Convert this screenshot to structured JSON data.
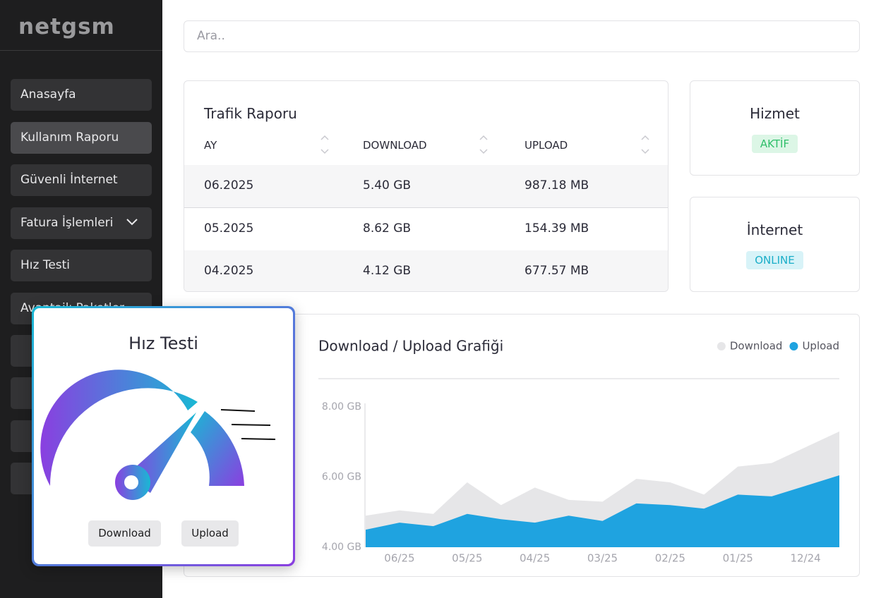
{
  "sidebar": {
    "logo": "netgsm",
    "menu": [
      "Anasayfa",
      "Kullanım Raporu",
      "Güvenli İnternet",
      "Fatura İşlemleri",
      "Hız Testi",
      "Avantajlı Paketler"
    ],
    "active": 1
  },
  "search": {
    "placeholder": "Ara.."
  },
  "traffic": {
    "title": "Trafik Raporu",
    "columns": [
      "AY",
      "DOWNLOAD",
      "UPLOAD"
    ],
    "rows": [
      [
        "06.2025",
        "5.40 GB",
        "987.18 MB"
      ],
      [
        "05.2025",
        "8.62 GB",
        "154.39 MB"
      ],
      [
        "04.2025",
        "4.12 GB",
        "677.57 MB"
      ]
    ]
  },
  "status_cards": [
    {
      "title": "Hizmet",
      "badge": "AKTİF"
    },
    {
      "title": "İnternet",
      "badge": "ONLINE"
    }
  ],
  "chart_data": {
    "type": "area",
    "title": "Download / Upload Grafiği",
    "categories": [
      null,
      "06/25",
      null,
      "05/25",
      null,
      "04/25",
      null,
      "03/25",
      null,
      "02/25",
      null,
      "01/25",
      null,
      "12/24",
      null
    ],
    "series": [
      {
        "name": "Download",
        "color": "#e6e6e8",
        "values": [
          4.9,
          5.05,
          4.95,
          5.85,
          5.2,
          5.7,
          5.35,
          5.3,
          5.95,
          5.85,
          5.5,
          6.3,
          6.4,
          6.85,
          7.3
        ]
      },
      {
        "name": "Upload",
        "color": "#1fa3e0",
        "values": [
          4.5,
          4.7,
          4.6,
          4.95,
          4.8,
          4.7,
          4.9,
          4.75,
          5.25,
          5.2,
          5.1,
          5.5,
          5.45,
          5.75,
          6.05
        ]
      }
    ],
    "ylim": [
      4,
      8
    ],
    "yticks": [
      {
        "value": 8,
        "label": "8.00 GB"
      },
      {
        "value": 6,
        "label": "6.00 GB"
      },
      {
        "value": 4,
        "label": "4.00 GB"
      }
    ],
    "legend": "top-right"
  },
  "speed_test": {
    "title": "Hız Testi",
    "buttons": [
      "Download",
      "Upload"
    ]
  }
}
